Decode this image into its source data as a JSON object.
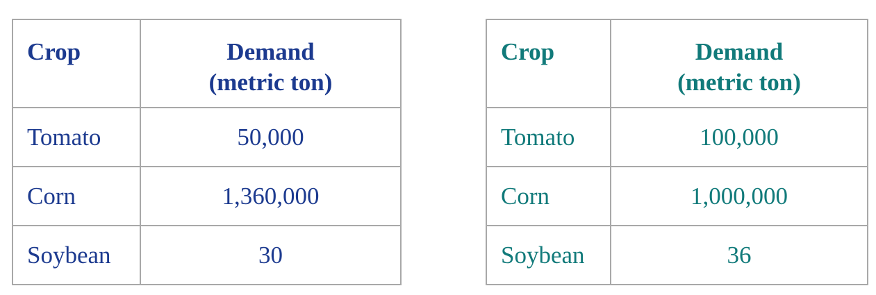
{
  "tables": [
    {
      "color": "#1c3a8f",
      "header": {
        "crop": "Crop",
        "demand_line1": "Demand",
        "demand_line2": "(metric ton)"
      },
      "rows": [
        {
          "crop": "Tomato",
          "demand": "50,000"
        },
        {
          "crop": "Corn",
          "demand": "1,360,000"
        },
        {
          "crop": "Soybean",
          "demand": "30"
        }
      ]
    },
    {
      "color": "#117a7a",
      "header": {
        "crop": "Crop",
        "demand_line1": "Demand",
        "demand_line2": "(metric ton)"
      },
      "rows": [
        {
          "crop": "Tomato",
          "demand": "100,000"
        },
        {
          "crop": "Corn",
          "demand": "1,000,000"
        },
        {
          "crop": "Soybean",
          "demand": "36"
        }
      ]
    }
  ]
}
